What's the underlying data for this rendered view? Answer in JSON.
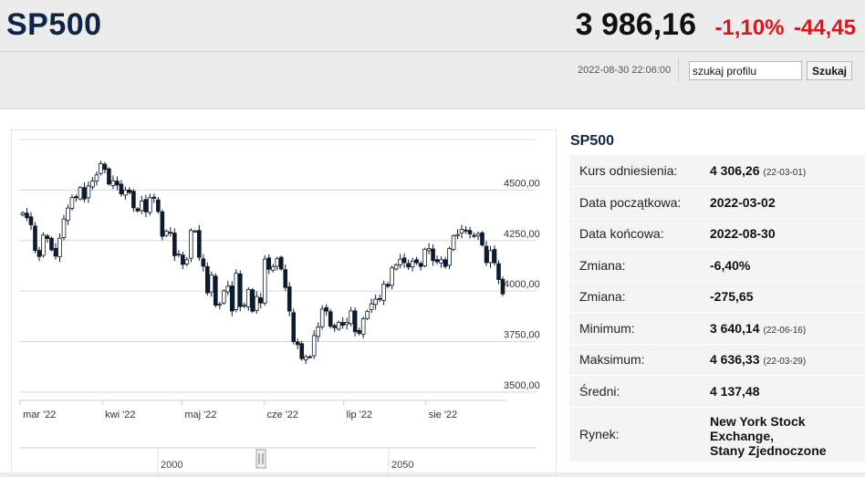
{
  "header": {
    "symbol": "SP500",
    "price": "3 986,16",
    "change_pct": "-1,10%",
    "change_abs": "-44,45",
    "datetime": "2022-08-30 22:06:00",
    "search_value": "szukaj profilu",
    "search_button": "Szukaj"
  },
  "info": {
    "title": "SP500",
    "rows": [
      {
        "label": "Kurs odniesienia:",
        "value": "4 306,26",
        "sub": "(22-03-01)"
      },
      {
        "label": "Data początkowa:",
        "value": "2022-03-02"
      },
      {
        "label": "Data końcowa:",
        "value": "2022-08-30"
      },
      {
        "label": "Zmiana:",
        "value": "-6,40%"
      },
      {
        "label": "Zmiana:",
        "value": "-275,65"
      },
      {
        "label": "Minimum:",
        "value": "3 640,14",
        "sub": "(22-06-16)"
      },
      {
        "label": "Maksimum:",
        "value": "4 636,33",
        "sub": "(22-03-29)"
      },
      {
        "label": "Średni:",
        "value": "4 137,48"
      },
      {
        "label": "Rynek:",
        "value_lines": [
          "New York Stock",
          "Exchange,",
          "Stany Zjednoczone"
        ]
      }
    ]
  },
  "chart_data": {
    "type": "candlestick",
    "y_ticks": [
      "4500,00",
      "4250,00",
      "4000,00",
      "3750,00",
      "3500,00"
    ],
    "y_tick_values": [
      4500,
      4250,
      4000,
      3750,
      3500
    ],
    "ylim": [
      3450,
      4750
    ],
    "x_tick_labels": [
      "mar '22",
      "kwi '22",
      "maj '22",
      "cze '22",
      "lip '22",
      "sie '22"
    ],
    "x_tick_dates": [
      "2022-03-01",
      "2022-04-01",
      "2022-05-01",
      "2022-06-01",
      "2022-07-01",
      "2022-08-01"
    ],
    "x_range": [
      "2022-03-02",
      "2022-08-30"
    ],
    "navigator_labels": [
      "2000",
      "2050"
    ],
    "close": [
      4387,
      4363,
      4328,
      4201,
      4171,
      4277,
      4260,
      4204,
      4173,
      4262,
      4357,
      4411,
      4463,
      4462,
      4512,
      4456,
      4520,
      4544,
      4575,
      4631,
      4602,
      4530,
      4546,
      4525,
      4481,
      4500,
      4488,
      4412,
      4397,
      4446,
      4392,
      4462,
      4459,
      4394,
      4271,
      4297,
      4287,
      4175,
      4183,
      4132,
      4155,
      4300,
      4297,
      4167,
      4123,
      3991,
      4080,
      3930,
      3935,
      4001,
      4024,
      3901,
      4088,
      3923,
      3930,
      4008,
      3900,
      3973,
      3941,
      4158,
      4108,
      4121,
      4160,
      4109,
      4018,
      3901,
      3750,
      3735,
      3666,
      3675,
      3674,
      3780,
      3822,
      3911,
      3901,
      3826,
      3819,
      3846,
      3831,
      3845,
      3902,
      3799,
      3791,
      3863,
      3900,
      3937,
      3960,
      3961,
      4034,
      4024,
      4115,
      4130,
      4158,
      4141,
      4119,
      4148,
      4140,
      4122,
      4207,
      4210,
      4151,
      4145,
      4155,
      4122,
      4210,
      4273,
      4280,
      4305,
      4297,
      4283,
      4274,
      4284,
      4228,
      4141,
      4200,
      4140,
      4057,
      3986
    ]
  }
}
